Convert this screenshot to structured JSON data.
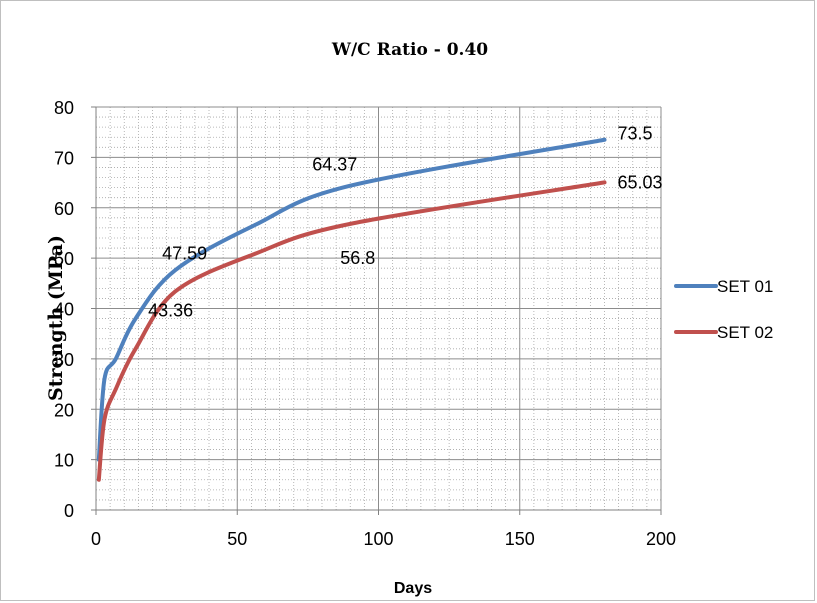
{
  "chart_data": {
    "type": "line",
    "title": "W/C Ratio - 0.40",
    "xlabel": "Days",
    "ylabel": "Strength (MPa)",
    "xlim": [
      0,
      200
    ],
    "ylim": [
      0,
      80
    ],
    "x_ticks": [
      0,
      50,
      100,
      150,
      200
    ],
    "y_ticks": [
      0,
      10,
      20,
      30,
      40,
      50,
      60,
      70,
      80
    ],
    "grid": true,
    "legend_position": "right",
    "series": [
      {
        "name": "SET 01",
        "color": "#4f81bd",
        "x": [
          1,
          3,
          7,
          14,
          28,
          56,
          90,
          180
        ],
        "y": [
          10,
          26,
          30,
          38,
          47.59,
          56.5,
          64.37,
          73.5
        ]
      },
      {
        "name": "SET 02",
        "color": "#c0504d",
        "x": [
          1,
          3,
          7,
          14,
          28,
          56,
          90,
          180
        ],
        "y": [
          6,
          18,
          24,
          32,
          43.36,
          50.8,
          56.8,
          65.03
        ]
      }
    ],
    "data_labels": [
      {
        "series": "SET 01",
        "text": "47.59"
      },
      {
        "series": "SET 01",
        "text": "64.37"
      },
      {
        "series": "SET 01",
        "text": "73.5"
      },
      {
        "series": "SET 02",
        "text": "43.36"
      },
      {
        "series": "SET 02",
        "text": "56.8"
      },
      {
        "series": "SET 02",
        "text": "65.03"
      }
    ]
  }
}
